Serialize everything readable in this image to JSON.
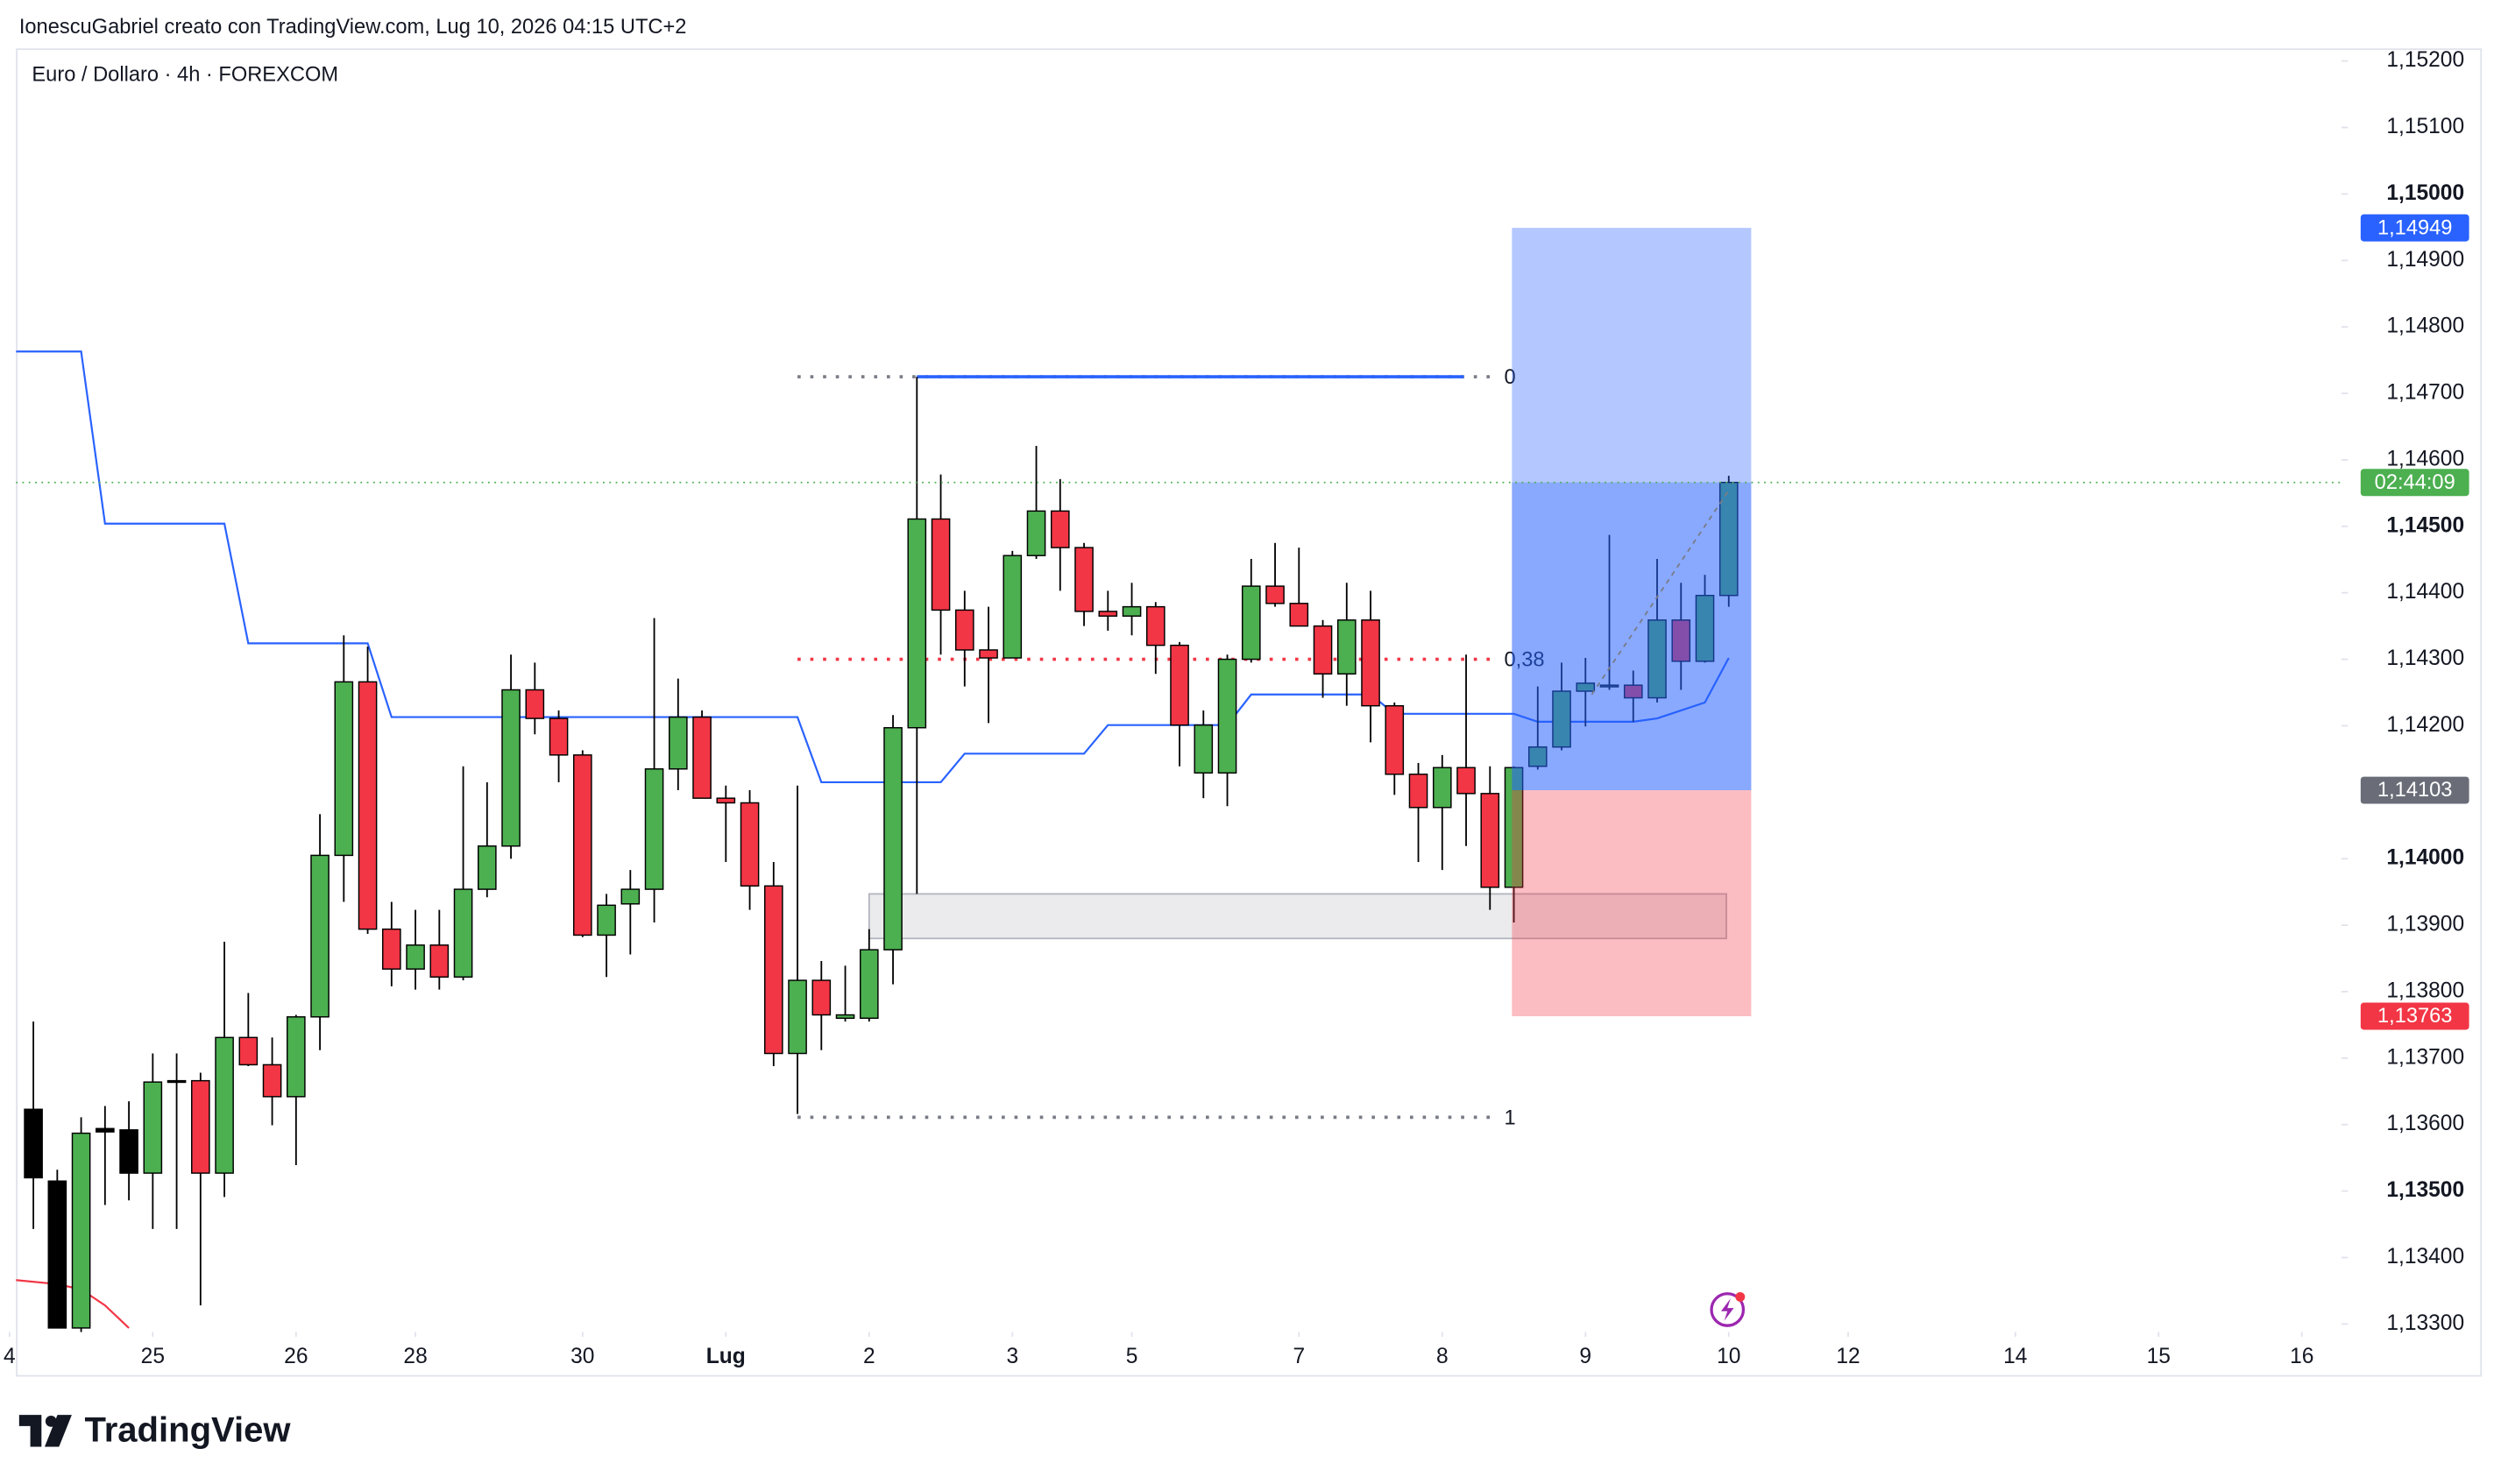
{
  "caption": "IonescuGabriel creato con TradingView.com, Lug 10, 2026 04:15 UTC+2",
  "logo": "TradingView",
  "chart_data": {
    "type": "candlestick",
    "title": "Euro / Dollaro · 4h · FOREXCOM",
    "xlim": [
      -0.73,
      96.46
    ],
    "ylim": [
      1.13288,
      1.15219
    ],
    "xticks": [
      {
        "value": -1,
        "label": "4"
      },
      {
        "value": 5,
        "label": "25"
      },
      {
        "value": 11,
        "label": "26"
      },
      {
        "value": 16,
        "label": "28"
      },
      {
        "value": 23,
        "label": "30"
      },
      {
        "value": 29,
        "label": "Lug"
      },
      {
        "value": 35,
        "label": "2"
      },
      {
        "value": 41,
        "label": "3"
      },
      {
        "value": 46,
        "label": "5"
      },
      {
        "value": 53,
        "label": "7"
      },
      {
        "value": 59,
        "label": "8"
      },
      {
        "value": 65,
        "label": "9"
      },
      {
        "value": 71,
        "label": "10"
      },
      {
        "value": 76,
        "label": "12"
      },
      {
        "value": 83,
        "label": "14"
      },
      {
        "value": 89,
        "label": "15"
      },
      {
        "value": 95,
        "label": "16"
      }
    ],
    "yticks": [
      {
        "value": 1.152,
        "label": "1,15200"
      },
      {
        "value": 1.151,
        "label": "1,15100"
      },
      {
        "value": 1.15,
        "label": "1,15000"
      },
      {
        "value": 1.149,
        "label": "1,14900"
      },
      {
        "value": 1.148,
        "label": "1,14800"
      },
      {
        "value": 1.147,
        "label": "1,14700"
      },
      {
        "value": 1.146,
        "label": "1,14600"
      },
      {
        "value": 1.145,
        "label": "1,14500"
      },
      {
        "value": 1.144,
        "label": "1,14400"
      },
      {
        "value": 1.143,
        "label": "1,14300"
      },
      {
        "value": 1.142,
        "label": "1,14200"
      },
      {
        "value": 1.14,
        "label": "1,14000"
      },
      {
        "value": 1.139,
        "label": "1,13900"
      },
      {
        "value": 1.138,
        "label": "1,13800"
      },
      {
        "value": 1.137,
        "label": "1,13700"
      },
      {
        "value": 1.136,
        "label": "1,13600"
      },
      {
        "value": 1.135,
        "label": "1,13500"
      },
      {
        "value": 1.134,
        "label": "1,13400"
      },
      {
        "value": 1.133,
        "label": "1,13300"
      }
    ],
    "open": [
      1.13623,
      1.13515,
      1.13294,
      1.13594,
      1.13592,
      1.13527,
      1.13666,
      1.13666,
      1.13527,
      1.13731,
      1.1369,
      1.13642,
      1.13762,
      1.14005,
      1.14266,
      1.13894,
      1.13834,
      1.1387,
      1.13822,
      1.13954,
      1.14019,
      1.14254,
      1.14211,
      1.14156,
      1.13885,
      1.13932,
      1.13954,
      1.14135,
      1.14213,
      1.14091,
      1.14084,
      1.13959,
      1.13707,
      1.13817,
      1.1376,
      1.1376,
      1.13863,
      1.14197,
      1.14511,
      1.14374,
      1.14314,
      1.14302,
      1.14456,
      1.14523,
      1.14468,
      1.14372,
      1.14365,
      1.14379,
      1.14321,
      1.14129,
      1.14129,
      1.143,
      1.1441,
      1.14384,
      1.1435,
      1.14278,
      1.14359,
      1.1423,
      1.14127,
      1.14077,
      1.14137,
      1.14098,
      1.13957,
      1.14139,
      1.14168,
      1.14252,
      1.14259,
      1.14261,
      1.14242,
      1.14359,
      1.14297,
      1.14396
    ],
    "high": [
      1.13755,
      1.13532,
      1.13611,
      1.13628,
      1.13635,
      1.13707,
      1.13707,
      1.13678,
      1.13875,
      1.13798,
      1.13731,
      1.13765,
      1.14067,
      1.14336,
      1.14319,
      1.13935,
      1.13923,
      1.13923,
      1.14139,
      1.14115,
      1.14307,
      1.14295,
      1.14223,
      1.14163,
      1.13947,
      1.13983,
      1.14362,
      1.14271,
      1.14223,
      1.1411,
      1.14103,
      1.13995,
      1.1411,
      1.13846,
      1.13839,
      1.13894,
      1.14216,
      1.14725,
      1.14578,
      1.14403,
      1.14379,
      1.14463,
      1.14621,
      1.14571,
      1.14475,
      1.14403,
      1.14415,
      1.14386,
      1.14326,
      1.14223,
      1.14307,
      1.14451,
      1.14475,
      1.14468,
      1.14359,
      1.14415,
      1.14403,
      1.14235,
      1.14144,
      1.14156,
      1.14307,
      1.14139,
      1.14139,
      1.14259,
      1.14295,
      1.14302,
      1.14487,
      1.14283,
      1.14451,
      1.14415,
      1.14427,
      1.14576
    ],
    "low": [
      1.13443,
      1.13294,
      1.13287,
      1.13479,
      1.13486,
      1.13443,
      1.13443,
      1.13328,
      1.13491,
      1.13688,
      1.13599,
      1.13539,
      1.13712,
      1.13935,
      1.13887,
      1.13808,
      1.13803,
      1.13803,
      1.13817,
      1.13942,
      1.14,
      1.14187,
      1.14115,
      1.13882,
      1.13822,
      1.13856,
      1.13904,
      1.14103,
      1.14091,
      1.13995,
      1.13923,
      1.13688,
      1.13616,
      1.13712,
      1.13755,
      1.13755,
      1.13811,
      1.13947,
      1.14307,
      1.14259,
      1.14204,
      1.14302,
      1.14451,
      1.14403,
      1.1435,
      1.14343,
      1.14336,
      1.14278,
      1.14139,
      1.14091,
      1.14079,
      1.14295,
      1.14379,
      1.1435,
      1.14242,
      1.1423,
      1.14175,
      1.14096,
      1.13995,
      1.13983,
      1.14019,
      1.13923,
      1.13904,
      1.14134,
      1.14163,
      1.14199,
      1.14254,
      1.14206,
      1.14235,
      1.14254,
      1.14295,
      1.14379
    ],
    "close": [
      1.1352,
      1.13294,
      1.13587,
      1.13589,
      1.13527,
      1.13664,
      1.13664,
      1.13527,
      1.13731,
      1.1369,
      1.13642,
      1.13762,
      1.14005,
      1.14266,
      1.13894,
      1.13834,
      1.1387,
      1.13822,
      1.13954,
      1.14019,
      1.14254,
      1.14211,
      1.14156,
      1.13885,
      1.1393,
      1.13954,
      1.14135,
      1.14213,
      1.14091,
      1.14084,
      1.13959,
      1.13707,
      1.13817,
      1.13765,
      1.13765,
      1.13863,
      1.14197,
      1.14511,
      1.14374,
      1.14314,
      1.14302,
      1.14456,
      1.14523,
      1.14468,
      1.14372,
      1.14365,
      1.14379,
      1.14321,
      1.14201,
      1.14201,
      1.143,
      1.1441,
      1.14384,
      1.1435,
      1.14278,
      1.14359,
      1.1423,
      1.14127,
      1.14077,
      1.14137,
      1.14098,
      1.13957,
      1.14137,
      1.14168,
      1.14252,
      1.14264,
      1.14261,
      1.14242,
      1.14359,
      1.14297,
      1.14396,
      1.14566
    ],
    "candle_colors": [
      "#000000",
      "#000000",
      "#4caf50",
      "#000000",
      "#000000",
      "#4caf50",
      "#000000",
      "#f23645",
      "#4caf50",
      "#f23645",
      "#f23645",
      "#4caf50",
      "#4caf50",
      "#4caf50",
      "#f23645",
      "#f23645",
      "#4caf50",
      "#f23645",
      "#4caf50",
      "#4caf50",
      "#4caf50",
      "#f23645",
      "#f23645",
      "#f23645",
      "#4caf50",
      "#4caf50",
      "#4caf50",
      "#4caf50",
      "#f23645",
      "#f23645",
      "#f23645",
      "#f23645",
      "#4caf50",
      "#f23645",
      "#4caf50",
      "#4caf50",
      "#4caf50",
      "#4caf50",
      "#f23645",
      "#f23645",
      "#f23645",
      "#4caf50",
      "#4caf50",
      "#f23645",
      "#f23645",
      "#f23645",
      "#4caf50",
      "#f23645",
      "#f23645",
      "#4caf50",
      "#4caf50",
      "#4caf50",
      "#f23645",
      "#f23645",
      "#f23645",
      "#4caf50",
      "#f23645",
      "#f23645",
      "#f23645",
      "#4caf50",
      "#f23645",
      "#f23645",
      "#4caf50",
      "#4caf50",
      "#4caf50",
      "#4caf50",
      "#4caf50",
      "#f23645",
      "#4caf50",
      "#f23645",
      "#4caf50",
      "#4caf50"
    ],
    "lines": [
      {
        "color": "#2962ff",
        "x": [
          -0.73,
          2,
          3,
          8,
          9,
          14,
          15,
          32,
          33,
          38,
          39,
          44,
          45,
          50,
          51,
          56,
          57,
          62,
          63,
          67,
          68,
          70,
          71
        ],
        "values": [
          1.14763,
          1.14763,
          1.14504,
          1.14504,
          1.14324,
          1.14324,
          1.14213,
          1.14213,
          1.14115,
          1.14115,
          1.14158,
          1.14158,
          1.14201,
          1.14201,
          1.14247,
          1.14247,
          1.14218,
          1.14218,
          1.14206,
          1.14206,
          1.14211,
          1.14235,
          1.14302
        ]
      },
      {
        "color": "#f23645",
        "x": [
          -0.73,
          1,
          2,
          3,
          4
        ],
        "values": [
          1.13366,
          1.1336,
          1.13352,
          1.13328,
          1.13294
        ]
      }
    ],
    "fib": {
      "x_from": 32,
      "x_to": 61.06,
      "levels": [
        {
          "value": 1.14725,
          "label": "0",
          "color": "#787b86"
        },
        {
          "value": 1.143,
          "label": "0,38",
          "color": "#f23645"
        },
        {
          "value": 1.13611,
          "label": "1",
          "color": "#787b86"
        }
      ]
    },
    "hline": {
      "value": 1.14725,
      "x_from": 37,
      "x_to": 59.9,
      "color": "#2962ff"
    },
    "zone": {
      "x_from": 35,
      "x_to": 70.9,
      "top": 1.13947,
      "bottom": 1.1388
    },
    "position": {
      "x_from": 61.92,
      "x_to": 71.94,
      "target": {
        "value": 1.14949,
        "label": "1,14949",
        "color": "#2962ff"
      },
      "entry": {
        "value": 1.14103,
        "label": "1,14103",
        "color": "#6a6d78"
      },
      "stop": {
        "value": 1.13763,
        "label": "1,13763",
        "color": "#f23645"
      }
    },
    "last_price": {
      "value": 1.14566,
      "label": "02:44:09",
      "color": "#4caf50"
    }
  }
}
